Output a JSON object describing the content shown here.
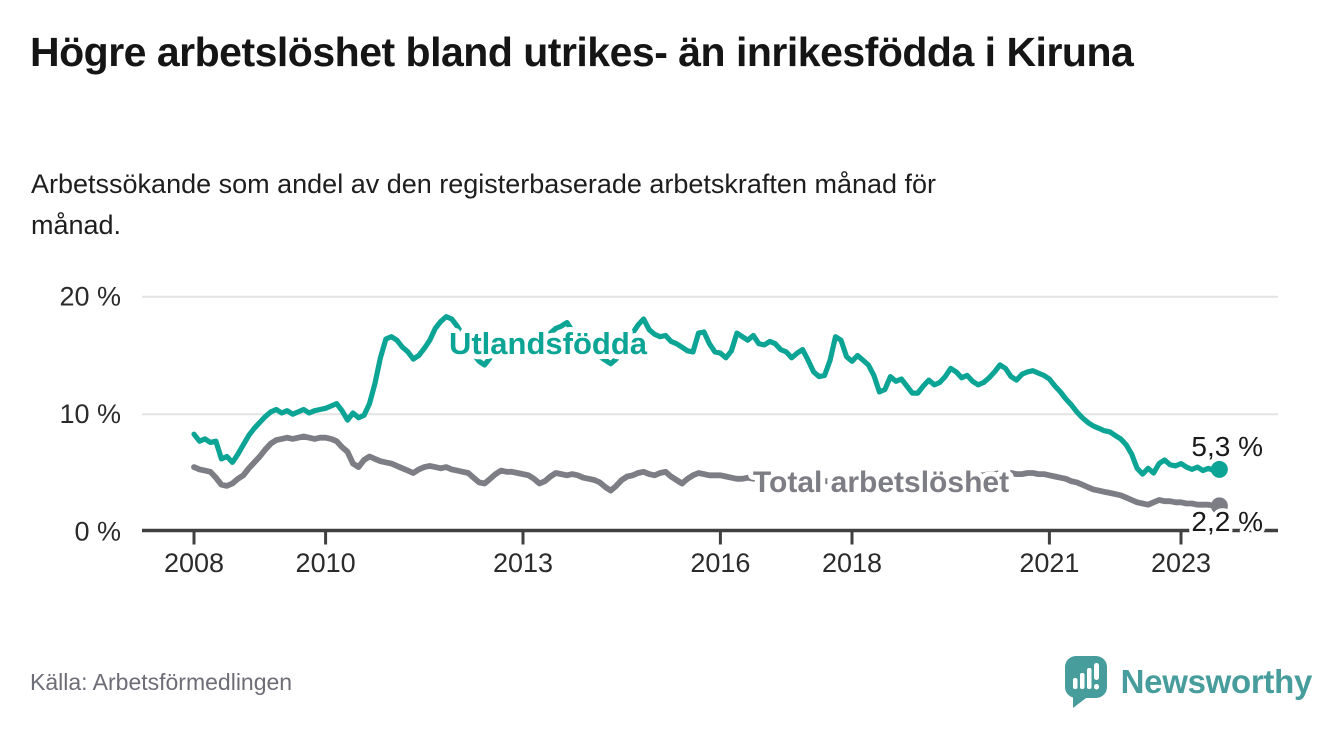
{
  "header": {
    "title": "Högre arbetslöshet bland utrikes- än inrikesfödda i Kiruna",
    "subtitle": "Arbetssökande som andel av den registerbaserade arbetskraften månad för månad."
  },
  "footer": {
    "source": "Källa: Arbetsförmedlingen",
    "brand": "Newsworthy"
  },
  "colors": {
    "series_utlandsfodda": "#0ca495",
    "series_total": "#7d7d85",
    "logo_teal": "#469d9b",
    "grid": "#e4e4e4",
    "axis": "#404040",
    "axis_text": "#2b2b2b",
    "value_label": "#1a1a1a"
  },
  "chart_data": {
    "type": "line",
    "title": "Högre arbetslöshet bland utrikes- än inrikesfödda i Kiruna",
    "subtitle": "Arbetssökande som andel av den registerbaserade arbetskraften månad för månad.",
    "unit": "%",
    "x_start_year": 2008,
    "x_step_years": 0.08333333,
    "xlim": [
      2007.2,
      2024.5
    ],
    "ylim": [
      0,
      21.5
    ],
    "grid": "horizontal-only",
    "x_ticks": [
      2008,
      2010,
      2013,
      2016,
      2018,
      2021,
      2023
    ],
    "y_ticks": [
      {
        "value": 0,
        "label": "0 %"
      },
      {
        "value": 10,
        "label": "10 %"
      },
      {
        "value": 20,
        "label": "20 %"
      }
    ],
    "series": [
      {
        "name": "Utlandsfödda",
        "end_label": "5,3 %",
        "last_value": 5.3,
        "values": [
          8.3,
          7.7,
          7.9,
          7.6,
          7.7,
          6.2,
          6.4,
          5.9,
          6.6,
          7.4,
          8.2,
          8.8,
          9.3,
          9.8,
          10.2,
          10.4,
          10.1,
          10.3,
          10.0,
          10.2,
          10.4,
          10.1,
          10.3,
          10.4,
          10.5,
          10.7,
          10.9,
          10.3,
          9.5,
          10.1,
          9.7,
          9.9,
          10.9,
          12.6,
          14.8,
          16.4,
          16.6,
          16.3,
          15.7,
          15.3,
          14.7,
          15.0,
          15.6,
          16.3,
          17.3,
          17.9,
          18.3,
          18.1,
          17.5,
          16.7,
          15.9,
          15.1,
          14.5,
          14.2,
          14.8,
          15.3,
          15.8,
          15.5,
          15.8,
          15.6,
          15.9,
          16.1,
          15.8,
          16.2,
          16.5,
          16.9,
          17.3,
          17.5,
          17.8,
          17.1,
          16.5,
          16.0,
          15.6,
          15.2,
          14.9,
          14.6,
          14.3,
          14.7,
          15.8,
          16.4,
          16.9,
          17.6,
          18.1,
          17.2,
          16.8,
          16.6,
          16.7,
          16.2,
          16.0,
          15.7,
          15.4,
          15.3,
          16.9,
          17.0,
          16.0,
          15.3,
          15.2,
          14.8,
          15.4,
          16.9,
          16.6,
          16.3,
          16.7,
          16.0,
          15.9,
          16.2,
          16.0,
          15.5,
          15.3,
          14.8,
          15.2,
          15.5,
          14.6,
          13.6,
          13.2,
          13.3,
          14.6,
          16.6,
          16.3,
          14.9,
          14.5,
          15.0,
          14.6,
          14.2,
          13.3,
          11.9,
          12.1,
          13.2,
          12.8,
          13.0,
          12.4,
          11.8,
          11.8,
          12.4,
          12.9,
          12.5,
          12.7,
          13.2,
          13.9,
          13.6,
          13.1,
          13.3,
          12.8,
          12.5,
          12.7,
          13.1,
          13.6,
          14.2,
          13.9,
          13.2,
          12.9,
          13.4,
          13.6,
          13.7,
          13.5,
          13.3,
          13.0,
          12.4,
          11.9,
          11.3,
          10.8,
          10.2,
          9.7,
          9.3,
          9.0,
          8.8,
          8.6,
          8.5,
          8.2,
          7.9,
          7.4,
          6.6,
          5.4,
          4.9,
          5.4,
          5.0,
          5.8,
          6.1,
          5.7,
          5.6,
          5.8,
          5.5,
          5.3,
          5.5,
          5.2,
          5.4,
          5.2,
          5.3
        ]
      },
      {
        "name": "Total arbetslöshet",
        "end_label": "2,2 %",
        "last_value": 2.2,
        "values": [
          5.5,
          5.3,
          5.2,
          5.1,
          4.6,
          4.0,
          3.9,
          4.1,
          4.5,
          4.8,
          5.4,
          5.9,
          6.4,
          7.0,
          7.5,
          7.8,
          7.9,
          8.0,
          7.9,
          8.0,
          8.1,
          8.0,
          7.9,
          8.0,
          8.0,
          7.9,
          7.7,
          7.2,
          6.8,
          5.8,
          5.5,
          6.1,
          6.4,
          6.2,
          6.0,
          5.9,
          5.8,
          5.6,
          5.4,
          5.2,
          5.0,
          5.3,
          5.5,
          5.6,
          5.5,
          5.4,
          5.5,
          5.3,
          5.2,
          5.1,
          5.0,
          4.6,
          4.2,
          4.1,
          4.5,
          4.9,
          5.2,
          5.1,
          5.1,
          5.0,
          4.9,
          4.8,
          4.5,
          4.1,
          4.3,
          4.7,
          5.0,
          4.9,
          4.8,
          4.9,
          4.8,
          4.6,
          4.5,
          4.4,
          4.2,
          3.8,
          3.5,
          3.9,
          4.4,
          4.7,
          4.8,
          5.0,
          5.1,
          4.9,
          4.8,
          5.0,
          5.1,
          4.7,
          4.4,
          4.1,
          4.5,
          4.8,
          5.0,
          4.9,
          4.8,
          4.8,
          4.8,
          4.7,
          4.6,
          4.5,
          4.5,
          4.6,
          4.5,
          4.6,
          4.5,
          4.4,
          4.5,
          4.5,
          4.4,
          4.4,
          4.3,
          4.4,
          4.3,
          4.2,
          4.2,
          4.3,
          4.3,
          4.4,
          4.3,
          4.2,
          4.2,
          4.3,
          4.2,
          4.1,
          4.1,
          4.0,
          4.1,
          4.2,
          4.1,
          4.2,
          4.2,
          4.3,
          4.3,
          4.4,
          4.4,
          4.5,
          4.5,
          4.6,
          4.6,
          4.7,
          4.7,
          4.8,
          4.8,
          4.8,
          4.8,
          4.9,
          4.9,
          5.0,
          5.0,
          5.0,
          4.9,
          4.9,
          5.0,
          5.0,
          4.9,
          4.9,
          4.8,
          4.7,
          4.6,
          4.5,
          4.3,
          4.2,
          4.0,
          3.8,
          3.6,
          3.5,
          3.4,
          3.3,
          3.2,
          3.1,
          2.9,
          2.7,
          2.5,
          2.4,
          2.3,
          2.5,
          2.7,
          2.6,
          2.6,
          2.5,
          2.5,
          2.4,
          2.4,
          2.3,
          2.3,
          2.3,
          2.2,
          2.2
        ]
      }
    ]
  }
}
